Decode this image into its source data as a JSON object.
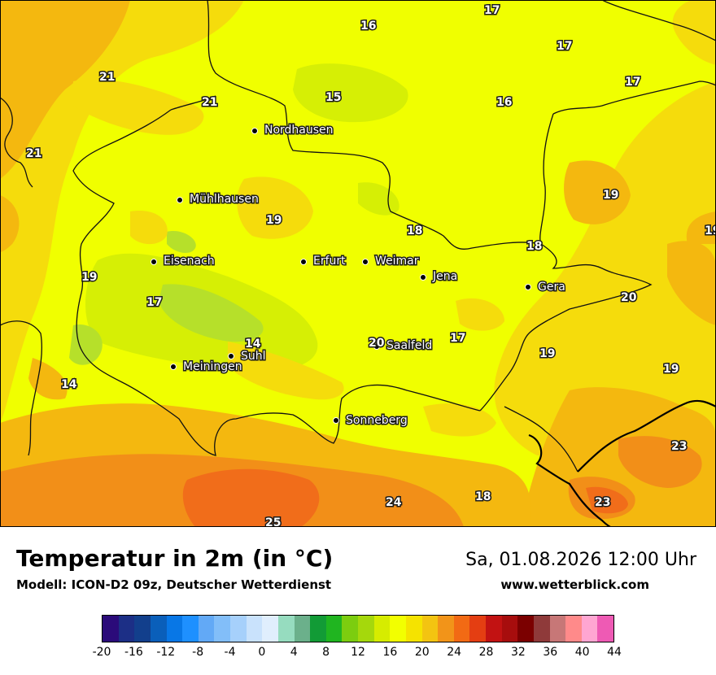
{
  "title": "Temperatur in 2m (in °C)",
  "model": "Modell: ICON-D2 09z, Deutscher Wetterdienst",
  "datetime": "Sa, 01.08.2026 12:00 Uhr",
  "website": "www.wetterblick.com",
  "colors": {
    "base": "#f0ff00",
    "warm_19_20": "#f5dc0c",
    "warm_21_22": "#f4b80f",
    "hot_23_24": "#f28f18",
    "hot_25": "#f16d1a",
    "cool_14_16": "#d6ef05",
    "cool_12_14": "#b6e02a"
  },
  "cities": [
    {
      "name": "Nordhausen"
    },
    {
      "name": "Mühlhausen"
    },
    {
      "name": "Eisenach"
    },
    {
      "name": "Erfurt"
    },
    {
      "name": "Weimar"
    },
    {
      "name": "Jena"
    },
    {
      "name": "Gera"
    },
    {
      "name": "Saalfeld"
    },
    {
      "name": "Suhl"
    },
    {
      "name": "Meiningen"
    },
    {
      "name": "Sonneberg"
    }
  ],
  "temperature_values": [
    "17",
    "16",
    "17",
    "17",
    "21",
    "15",
    "16",
    "21",
    "21",
    "19",
    "19",
    "18",
    "18",
    "19",
    "17",
    "20",
    "14",
    "20",
    "17",
    "19",
    "14",
    "19",
    "23",
    "24",
    "18",
    "23",
    "25",
    "19"
  ],
  "legend": {
    "colors": [
      "#2b0b7a",
      "#1c2f86",
      "#123f8c",
      "#0a5fba",
      "#0877e6",
      "#1e90ff",
      "#62a9f6",
      "#82bef9",
      "#a6d0fb",
      "#c9e2fc",
      "#e0eefd",
      "#96dcbf",
      "#6bb08b",
      "#129b36",
      "#20b520",
      "#7ccd0f",
      "#a5d80c",
      "#d6ec00",
      "#f2ff00",
      "#f5e300",
      "#f3c411",
      "#f29419",
      "#f26a14",
      "#e43e12",
      "#c21212",
      "#a70d0d",
      "#7b0000",
      "#8f3a3a",
      "#c77777",
      "#ff8a8a",
      "#ffa6d2",
      "#ee5ab4"
    ],
    "ticks": [
      "-20",
      "-16",
      "-12",
      "-8",
      "-4",
      "0",
      "4",
      "8",
      "12",
      "16",
      "20",
      "24",
      "28",
      "32",
      "36",
      "40",
      "44"
    ]
  }
}
